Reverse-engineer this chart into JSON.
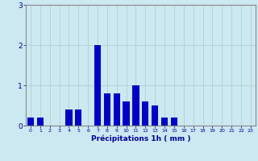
{
  "values": [
    0.2,
    0.2,
    0.0,
    0.0,
    0.4,
    0.4,
    0.0,
    2.0,
    0.8,
    0.8,
    0.6,
    1.0,
    0.6,
    0.5,
    0.2,
    0.2,
    0.0,
    0.0,
    0.0,
    0.0,
    0.0,
    0.0,
    0.0,
    0.0
  ],
  "bar_color": "#0000cc",
  "background_color": "#cce8f0",
  "grid_color": "#aacccc",
  "xlabel": "Précipitations 1h ( mm )",
  "xlabel_color": "#000099",
  "tick_color": "#000099",
  "axis_color": "#888888",
  "ylim": [
    0,
    3
  ],
  "yticks": [
    0,
    1,
    2,
    3
  ],
  "xlim": [
    -0.5,
    23.5
  ],
  "figsize": [
    3.2,
    2.0
  ],
  "dpi": 100
}
